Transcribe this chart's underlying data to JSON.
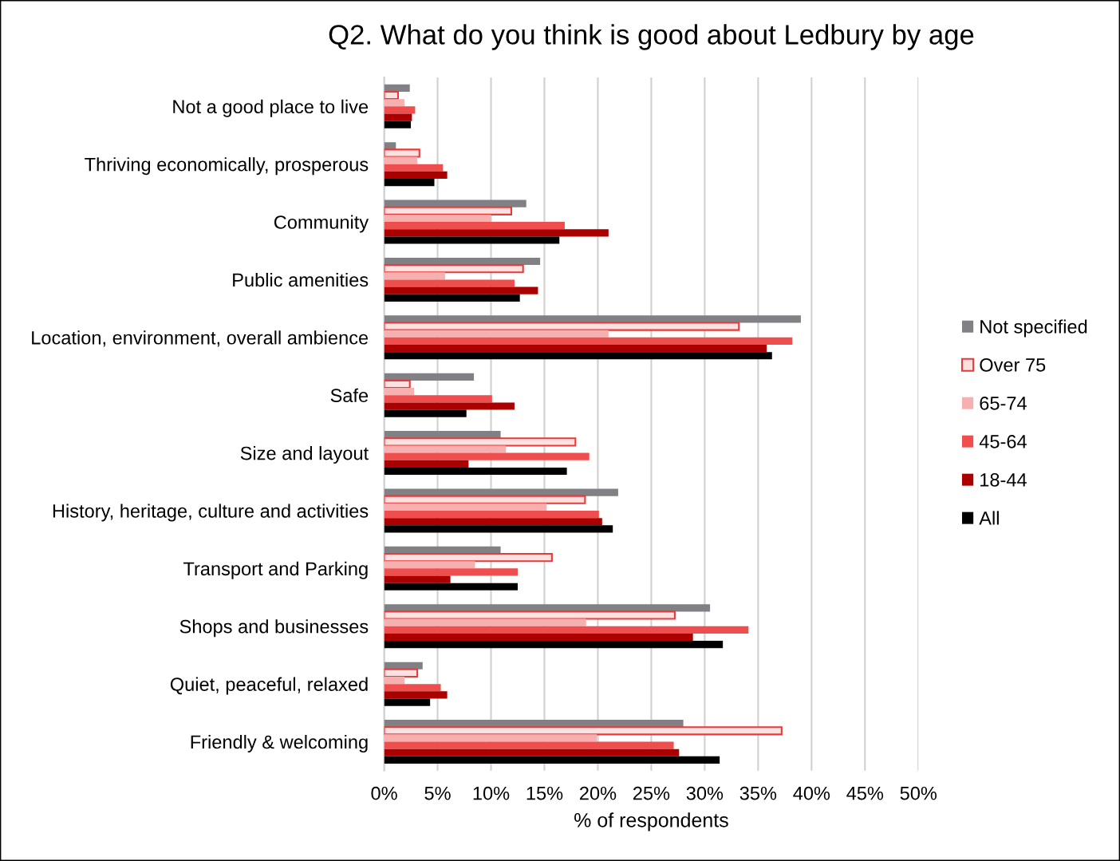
{
  "chart_data": {
    "type": "bar",
    "orientation": "horizontal",
    "title": "Q2. What do you think is good about Ledbury by age",
    "xlabel": "% of respondents",
    "categories": [
      "Not a good place to live",
      "Thriving economically, prosperous",
      "Community",
      "Public amenities",
      "Location, environment, overall ambience",
      "Safe",
      "Size and layout",
      "History, heritage, culture and activities",
      "Transport and Parking",
      "Shops and businesses",
      "Quiet, peaceful, relaxed",
      "Friendly & welcoming"
    ],
    "series": [
      {
        "name": "Not specified",
        "color": "#808085",
        "values": [
          2.4,
          1.1,
          13.3,
          14.6,
          39.0,
          8.4,
          10.9,
          21.9,
          10.9,
          30.5,
          3.6,
          28.0
        ]
      },
      {
        "name": "Over 75",
        "color": "#fde0e0",
        "values": [
          1.3,
          3.3,
          11.9,
          13.0,
          33.2,
          2.4,
          17.9,
          18.8,
          15.7,
          27.2,
          3.1,
          37.2
        ]
      },
      {
        "name": "65-74",
        "color": "#f7b0b0",
        "values": [
          1.9,
          3.1,
          10.0,
          5.7,
          21.0,
          2.8,
          11.4,
          15.2,
          8.5,
          18.9,
          1.9,
          19.9
        ]
      },
      {
        "name": "45-64",
        "color": "#ef4e4e",
        "values": [
          2.9,
          5.5,
          16.9,
          12.2,
          38.2,
          10.1,
          19.2,
          20.1,
          12.5,
          34.1,
          5.3,
          27.1
        ]
      },
      {
        "name": "18-44",
        "color": "#aa0000",
        "values": [
          2.6,
          5.9,
          21.0,
          14.4,
          35.8,
          12.2,
          7.9,
          20.4,
          6.2,
          28.9,
          5.9,
          27.6
        ]
      },
      {
        "name": "All",
        "color": "#000000",
        "values": [
          2.5,
          4.7,
          16.4,
          12.7,
          36.3,
          7.7,
          17.1,
          21.4,
          12.5,
          31.7,
          4.3,
          31.4
        ]
      }
    ],
    "xlim": [
      0,
      50
    ],
    "xticks": [
      {
        "value": 0,
        "label": "0%"
      },
      {
        "value": 5,
        "label": "5%"
      },
      {
        "value": 10,
        "label": "10%"
      },
      {
        "value": 15,
        "label": "15%"
      },
      {
        "value": 20,
        "label": "20%"
      },
      {
        "value": 25,
        "label": "25%"
      },
      {
        "value": 30,
        "label": "30%"
      },
      {
        "value": 35,
        "label": "35%"
      },
      {
        "value": 40,
        "label": "40%"
      },
      {
        "value": 45,
        "label": "45%"
      },
      {
        "value": 50,
        "label": "50%"
      }
    ],
    "grid": "x",
    "legend": "right"
  }
}
